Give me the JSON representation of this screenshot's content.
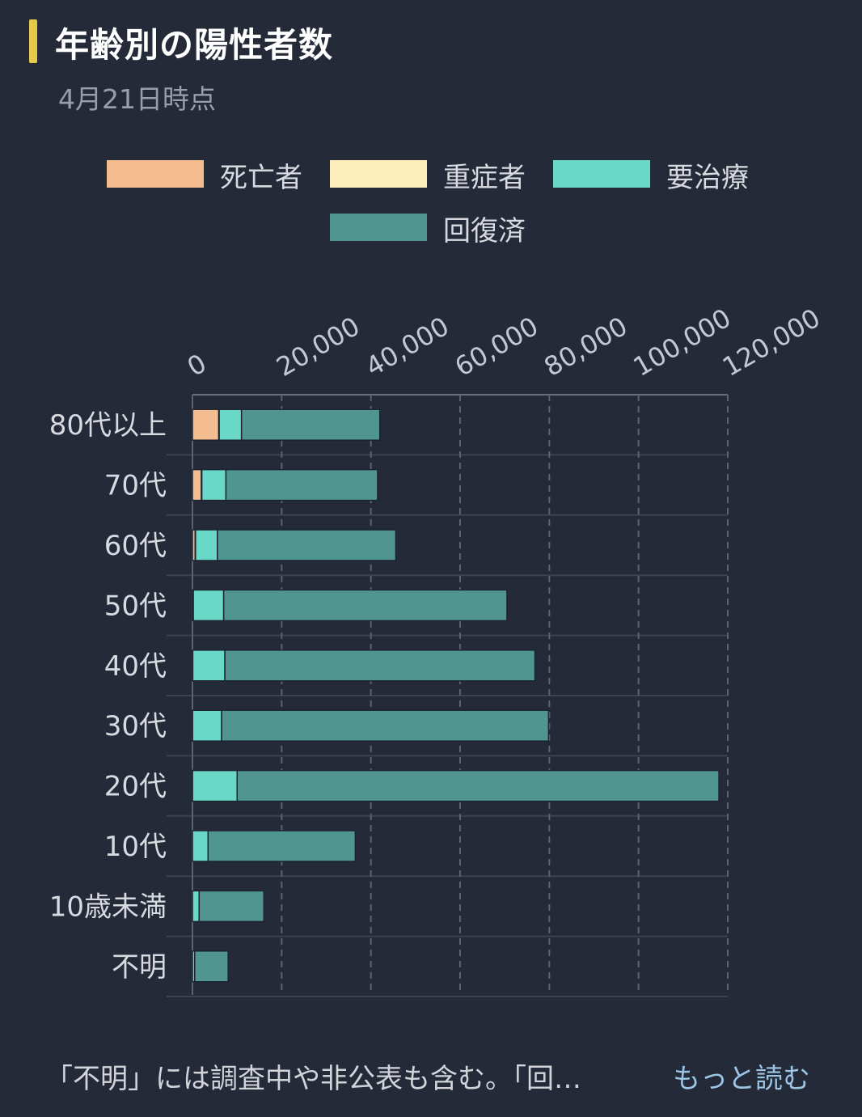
{
  "header": {
    "title": "年齢別の陽性者数",
    "subtitle": "4月21日時点"
  },
  "legend": [
    {
      "label": "死亡者",
      "color": "#f3bd90"
    },
    {
      "label": "重症者",
      "color": "#fdedbb"
    },
    {
      "label": "要治療",
      "color": "#6ad8c8"
    },
    {
      "label": "回復済",
      "color": "#519593"
    }
  ],
  "chart_data": {
    "type": "bar",
    "orientation": "horizontal",
    "stacked": true,
    "categories": [
      "80代以上",
      "70代",
      "60代",
      "50代",
      "40代",
      "30代",
      "20代",
      "10代",
      "10歳未満",
      "不明"
    ],
    "xlim": [
      0,
      120000
    ],
    "x_ticks": [
      "0",
      "20,000",
      "40,000",
      "60,000",
      "80,000",
      "100,000",
      "120,000"
    ],
    "grid": true,
    "legend_position": "top",
    "series": [
      {
        "name": "死亡者",
        "color": "#f3bd90",
        "values": [
          5900,
          2000,
          600,
          150,
          50,
          20,
          10,
          0,
          0,
          0
        ]
      },
      {
        "name": "重症者",
        "color": "#fdedbb",
        "values": [
          100,
          100,
          80,
          50,
          20,
          10,
          5,
          0,
          0,
          0
        ]
      },
      {
        "name": "要治療",
        "color": "#6ad8c8",
        "values": [
          5000,
          5400,
          4900,
          6800,
          7200,
          6500,
          10000,
          3500,
          1500,
          500
        ]
      },
      {
        "name": "回復済",
        "color": "#519593",
        "values": [
          31000,
          34000,
          40000,
          63500,
          69500,
          73300,
          108000,
          33000,
          14500,
          7500
        ]
      }
    ]
  },
  "footer": {
    "note": "「不明」には調査中や非公表も含む。「回…",
    "more_label": "もっと読む"
  }
}
